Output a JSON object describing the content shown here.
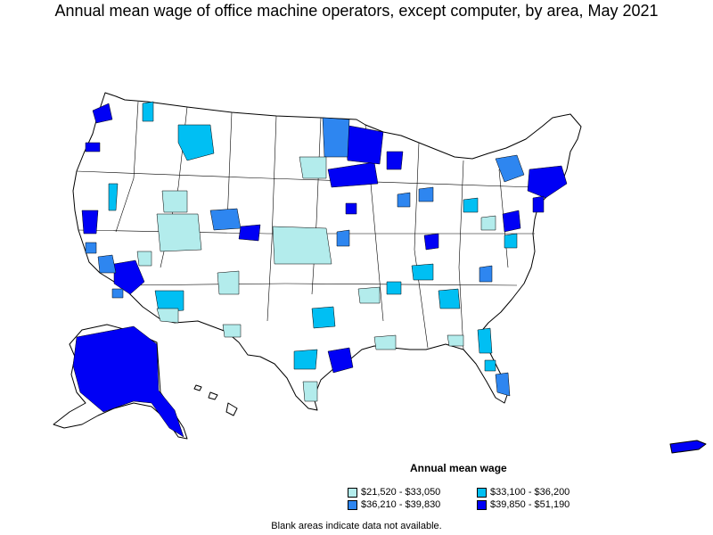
{
  "title": "Annual mean wage of office machine operators, except computer, by area, May 2021",
  "legend": {
    "title": "Annual mean wage",
    "items": [
      {
        "label": "$21,520 - $33,050",
        "color": "#b3ecec"
      },
      {
        "label": "$33,100 - $36,200",
        "color": "#00bff3"
      },
      {
        "label": "$36,210 - $39,830",
        "color": "#2e86f0"
      },
      {
        "label": "$39,850 - $51,190",
        "color": "#0000f5"
      }
    ]
  },
  "footnote": "Blank areas indicate data not available.",
  "colors": {
    "outline": "#000000",
    "no_data": "#ffffff"
  }
}
